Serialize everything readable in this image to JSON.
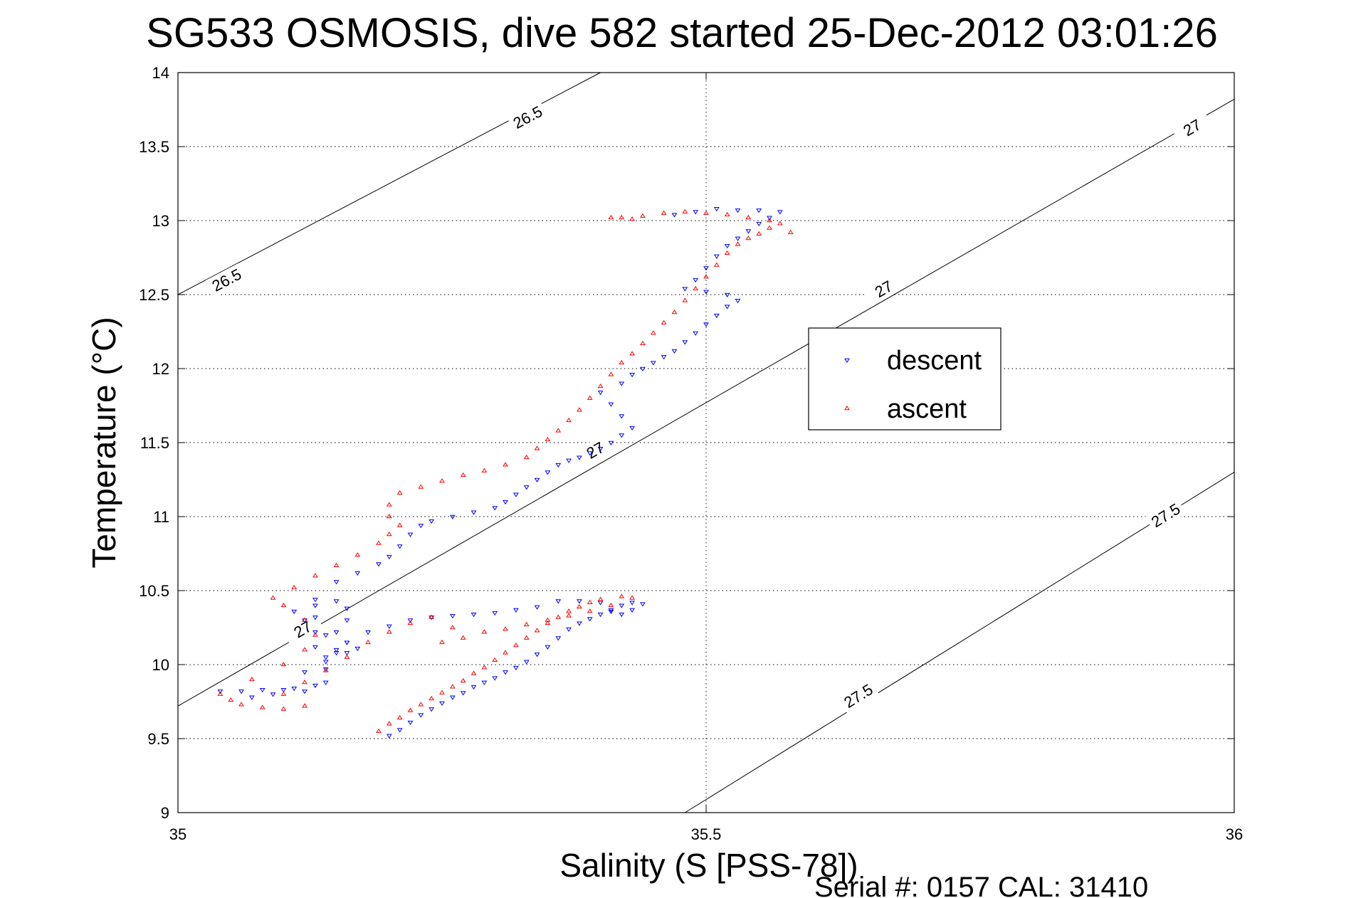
{
  "chart_data": {
    "type": "scatter",
    "title": "SG533 OSMOSIS, dive 582 started 25-Dec-2012 03:01:26",
    "xlabel": "Salinity (S [PSS-78])",
    "ylabel": "Temperature (°C)",
    "xlim": [
      35,
      36
    ],
    "ylim": [
      9,
      14
    ],
    "xticks": [
      "35",
      "35.5",
      "36"
    ],
    "yticks": [
      "9",
      "9.5",
      "10",
      "10.5",
      "11",
      "11.5",
      "12",
      "12.5",
      "13",
      "13.5",
      "14"
    ],
    "grid": true,
    "legend_position": "upper-right-inside",
    "footer": "Serial #: 0157  CAL: 31410",
    "density_contours": [
      {
        "level": "26.5",
        "points": [
          [
            35.0,
            12.5
          ],
          [
            35.4,
            14.0
          ]
        ],
        "labels": [
          [
            35.046,
            12.6
          ],
          [
            35.331,
            13.7
          ]
        ]
      },
      {
        "level": "27",
        "points": [
          [
            35.0,
            9.72
          ],
          [
            36.0,
            13.82
          ]
        ],
        "labels": [
          [
            35.118,
            10.24
          ],
          [
            35.395,
            11.45
          ],
          [
            35.668,
            12.54
          ],
          [
            35.96,
            13.63
          ]
        ]
      },
      {
        "level": "27.5",
        "points": [
          [
            35.48,
            9.0
          ],
          [
            36.0,
            11.3
          ]
        ],
        "labels": [
          [
            35.644,
            9.79
          ],
          [
            35.935,
            11.01
          ]
        ]
      }
    ],
    "series": [
      {
        "name": "descent",
        "color": "#0000ff",
        "marker": "triangle-down",
        "points": [
          [
            35.2,
            9.52
          ],
          [
            35.21,
            9.56
          ],
          [
            35.22,
            9.61
          ],
          [
            35.23,
            9.66
          ],
          [
            35.24,
            9.7
          ],
          [
            35.25,
            9.74
          ],
          [
            35.26,
            9.78
          ],
          [
            35.27,
            9.81
          ],
          [
            35.28,
            9.85
          ],
          [
            35.29,
            9.88
          ],
          [
            35.3,
            9.91
          ],
          [
            35.31,
            9.95
          ],
          [
            35.32,
            9.98
          ],
          [
            35.33,
            10.02
          ],
          [
            35.34,
            10.07
          ],
          [
            35.35,
            10.12
          ],
          [
            35.36,
            10.18
          ],
          [
            35.37,
            10.24
          ],
          [
            35.38,
            10.28
          ],
          [
            35.39,
            10.31
          ],
          [
            35.4,
            10.34
          ],
          [
            35.41,
            10.37
          ],
          [
            35.42,
            10.4
          ],
          [
            35.43,
            10.42
          ],
          [
            35.44,
            10.41
          ],
          [
            35.43,
            10.37
          ],
          [
            35.42,
            10.34
          ],
          [
            35.41,
            10.36
          ],
          [
            35.4,
            10.42
          ],
          [
            35.38,
            10.43
          ],
          [
            35.36,
            10.43
          ],
          [
            35.34,
            10.39
          ],
          [
            35.32,
            10.37
          ],
          [
            35.3,
            10.35
          ],
          [
            35.28,
            10.34
          ],
          [
            35.26,
            10.33
          ],
          [
            35.24,
            10.32
          ],
          [
            35.22,
            10.3
          ],
          [
            35.2,
            10.26
          ],
          [
            35.18,
            10.22
          ],
          [
            35.16,
            10.15
          ],
          [
            35.15,
            10.1
          ],
          [
            35.16,
            10.08
          ],
          [
            35.17,
            10.11
          ],
          [
            35.16,
            10.15
          ],
          [
            35.15,
            10.22
          ],
          [
            35.16,
            10.3
          ],
          [
            35.16,
            10.38
          ],
          [
            35.15,
            10.43
          ],
          [
            35.13,
            10.4
          ],
          [
            35.11,
            10.36
          ],
          [
            35.12,
            10.3
          ],
          [
            35.13,
            10.22
          ],
          [
            35.13,
            10.12
          ],
          [
            35.14,
            10.05
          ],
          [
            35.14,
            9.97
          ],
          [
            35.14,
            9.88
          ],
          [
            35.12,
            9.82
          ],
          [
            35.1,
            9.83
          ],
          [
            35.08,
            9.83
          ],
          [
            35.06,
            9.82
          ],
          [
            35.04,
            9.82
          ],
          [
            35.07,
            9.78
          ],
          [
            35.09,
            9.8
          ],
          [
            35.11,
            9.84
          ],
          [
            35.13,
            9.86
          ],
          [
            35.12,
            9.95
          ],
          [
            35.14,
            10.02
          ],
          [
            35.15,
            10.08
          ],
          [
            35.14,
            10.2
          ],
          [
            35.13,
            10.32
          ],
          [
            35.13,
            10.44
          ],
          [
            35.15,
            10.56
          ],
          [
            35.17,
            10.62
          ],
          [
            35.19,
            10.68
          ],
          [
            35.2,
            10.73
          ],
          [
            35.21,
            10.8
          ],
          [
            35.22,
            10.88
          ],
          [
            35.23,
            10.94
          ],
          [
            35.24,
            10.97
          ],
          [
            35.26,
            11.0
          ],
          [
            35.28,
            11.03
          ],
          [
            35.3,
            11.06
          ],
          [
            35.31,
            11.1
          ],
          [
            35.32,
            11.15
          ],
          [
            35.33,
            11.2
          ],
          [
            35.34,
            11.25
          ],
          [
            35.35,
            11.3
          ],
          [
            35.36,
            11.35
          ],
          [
            35.37,
            11.38
          ],
          [
            35.38,
            11.4
          ],
          [
            35.39,
            11.43
          ],
          [
            35.4,
            11.46
          ],
          [
            35.41,
            11.5
          ],
          [
            35.42,
            11.55
          ],
          [
            35.43,
            11.6
          ],
          [
            35.42,
            11.68
          ],
          [
            35.41,
            11.76
          ],
          [
            35.4,
            11.84
          ],
          [
            35.42,
            11.9
          ],
          [
            35.43,
            11.96
          ],
          [
            35.44,
            12.0
          ],
          [
            35.45,
            12.04
          ],
          [
            35.46,
            12.08
          ],
          [
            35.47,
            12.12
          ],
          [
            35.48,
            12.18
          ],
          [
            35.49,
            12.24
          ],
          [
            35.5,
            12.3
          ],
          [
            35.51,
            12.36
          ],
          [
            35.52,
            12.42
          ],
          [
            35.53,
            12.46
          ],
          [
            35.52,
            12.5
          ],
          [
            35.5,
            12.52
          ],
          [
            35.48,
            12.54
          ],
          [
            35.49,
            12.6
          ],
          [
            35.5,
            12.68
          ],
          [
            35.51,
            12.76
          ],
          [
            35.52,
            12.83
          ],
          [
            35.53,
            12.88
          ],
          [
            35.54,
            12.93
          ],
          [
            35.55,
            12.98
          ],
          [
            35.56,
            13.02
          ],
          [
            35.57,
            13.06
          ],
          [
            35.55,
            13.07
          ],
          [
            35.53,
            13.07
          ],
          [
            35.51,
            13.08
          ],
          [
            35.49,
            13.06
          ],
          [
            35.47,
            13.04
          ]
        ]
      },
      {
        "name": "ascent",
        "color": "#ff0000",
        "marker": "triangle-up",
        "points": [
          [
            35.19,
            9.55
          ],
          [
            35.2,
            9.6
          ],
          [
            35.21,
            9.64
          ],
          [
            35.22,
            9.69
          ],
          [
            35.23,
            9.73
          ],
          [
            35.24,
            9.77
          ],
          [
            35.25,
            9.81
          ],
          [
            35.26,
            9.85
          ],
          [
            35.27,
            9.89
          ],
          [
            35.28,
            9.94
          ],
          [
            35.29,
            9.98
          ],
          [
            35.3,
            10.03
          ],
          [
            35.31,
            10.08
          ],
          [
            35.32,
            10.13
          ],
          [
            35.33,
            10.18
          ],
          [
            35.34,
            10.23
          ],
          [
            35.35,
            10.28
          ],
          [
            35.36,
            10.32
          ],
          [
            35.37,
            10.36
          ],
          [
            35.38,
            10.39
          ],
          [
            35.39,
            10.42
          ],
          [
            35.4,
            10.44
          ],
          [
            35.42,
            10.46
          ],
          [
            35.43,
            10.45
          ],
          [
            35.41,
            10.4
          ],
          [
            35.39,
            10.36
          ],
          [
            35.37,
            10.33
          ],
          [
            35.35,
            10.3
          ],
          [
            35.33,
            10.27
          ],
          [
            35.31,
            10.24
          ],
          [
            35.29,
            10.22
          ],
          [
            35.27,
            10.18
          ],
          [
            35.25,
            10.15
          ],
          [
            35.26,
            10.25
          ],
          [
            35.24,
            10.32
          ],
          [
            35.22,
            10.28
          ],
          [
            35.2,
            10.22
          ],
          [
            35.18,
            10.15
          ],
          [
            35.16,
            10.05
          ],
          [
            35.14,
            9.96
          ],
          [
            35.12,
            9.88
          ],
          [
            35.1,
            9.8
          ],
          [
            35.12,
            9.72
          ],
          [
            35.1,
            9.7
          ],
          [
            35.08,
            9.71
          ],
          [
            35.06,
            9.73
          ],
          [
            35.05,
            9.76
          ],
          [
            35.04,
            9.8
          ],
          [
            35.07,
            9.9
          ],
          [
            35.1,
            10.0
          ],
          [
            35.12,
            10.1
          ],
          [
            35.13,
            10.2
          ],
          [
            35.12,
            10.3
          ],
          [
            35.1,
            10.4
          ],
          [
            35.09,
            10.45
          ],
          [
            35.11,
            10.52
          ],
          [
            35.13,
            10.6
          ],
          [
            35.15,
            10.67
          ],
          [
            35.17,
            10.74
          ],
          [
            35.19,
            10.82
          ],
          [
            35.2,
            10.88
          ],
          [
            35.21,
            10.94
          ],
          [
            35.2,
            11.0
          ],
          [
            35.2,
            11.08
          ],
          [
            35.21,
            11.16
          ],
          [
            35.23,
            11.2
          ],
          [
            35.25,
            11.24
          ],
          [
            35.27,
            11.28
          ],
          [
            35.29,
            11.31
          ],
          [
            35.31,
            11.35
          ],
          [
            35.33,
            11.4
          ],
          [
            35.34,
            11.46
          ],
          [
            35.35,
            11.52
          ],
          [
            35.36,
            11.58
          ],
          [
            35.37,
            11.65
          ],
          [
            35.38,
            11.72
          ],
          [
            35.39,
            11.8
          ],
          [
            35.4,
            11.88
          ],
          [
            35.41,
            11.96
          ],
          [
            35.42,
            12.04
          ],
          [
            35.43,
            12.1
          ],
          [
            35.44,
            12.17
          ],
          [
            35.45,
            12.24
          ],
          [
            35.46,
            12.31
          ],
          [
            35.47,
            12.38
          ],
          [
            35.48,
            12.46
          ],
          [
            35.49,
            12.54
          ],
          [
            35.5,
            12.62
          ],
          [
            35.51,
            12.7
          ],
          [
            35.52,
            12.78
          ],
          [
            35.53,
            12.84
          ],
          [
            35.54,
            12.88
          ],
          [
            35.55,
            12.91
          ],
          [
            35.56,
            12.95
          ],
          [
            35.57,
            12.98
          ],
          [
            35.58,
            12.92
          ],
          [
            35.56,
            13.0
          ],
          [
            35.54,
            13.02
          ],
          [
            35.52,
            13.04
          ],
          [
            35.5,
            13.05
          ],
          [
            35.48,
            13.06
          ],
          [
            35.46,
            13.05
          ],
          [
            35.44,
            13.03
          ],
          [
            35.42,
            13.02
          ],
          [
            35.41,
            13.02
          ],
          [
            35.43,
            13.01
          ]
        ]
      }
    ]
  }
}
